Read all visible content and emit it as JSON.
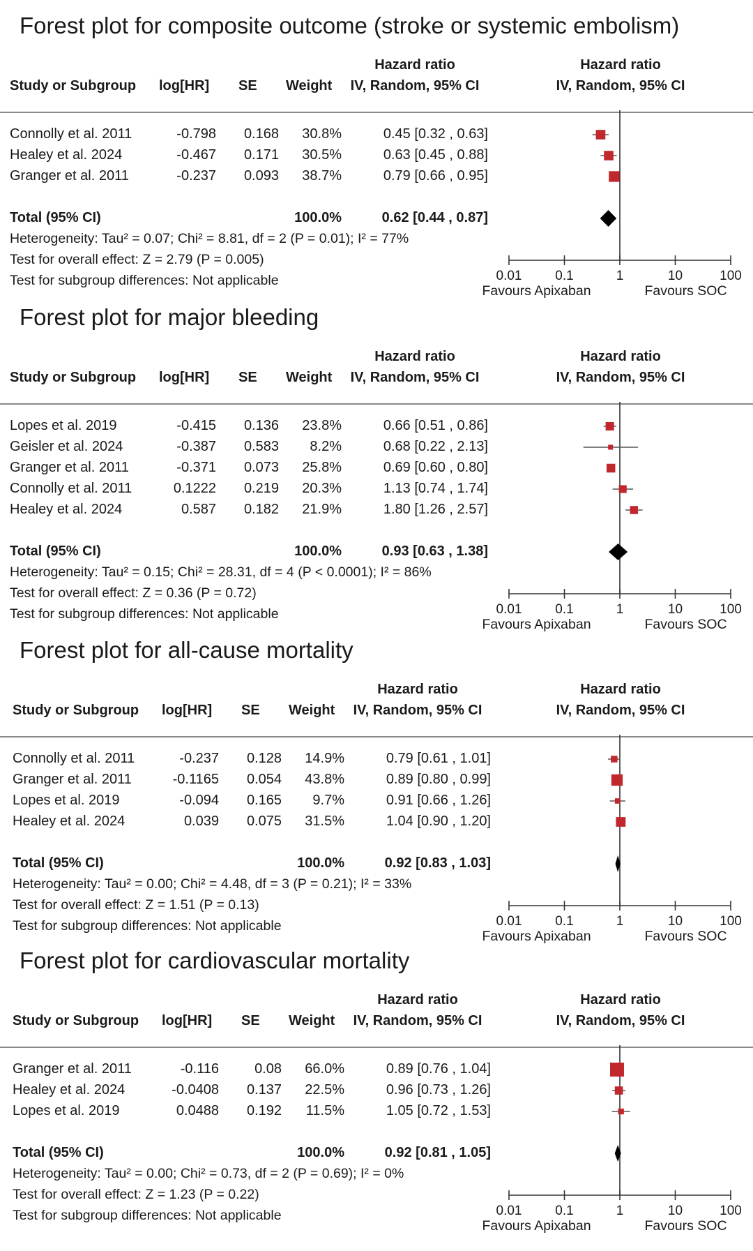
{
  "header": {
    "study": "Study or Subgroup",
    "loghr": "log[HR]",
    "se": "SE",
    "weight": "Weight",
    "hr_top": "Hazard ratio",
    "hr_bottom": "IV, Random, 95% CI",
    "plot_top": "Hazard ratio",
    "plot_bottom": "IV, Random, 95% CI"
  },
  "axis": {
    "ticks": [
      "0.01",
      "0.1",
      "1",
      "10",
      "100"
    ],
    "tick_values": [
      0.01,
      0.1,
      1,
      10,
      100
    ],
    "favours_left": "Favours Apixaban",
    "favours_right": "Favours SOC",
    "scale": "log"
  },
  "colors": {
    "marker": "#c0282d",
    "line": "#555555",
    "diamond": "#000000"
  },
  "chart_data": [
    {
      "type": "forest",
      "title": "Forest plot for composite outcome (stroke or systemic embolism)",
      "studies": [
        {
          "name": "Connolly et al. 2011",
          "loghr": "-0.798",
          "se": "0.168",
          "weight": "30.8%",
          "ci_text": "0.45 [0.32 , 0.63]",
          "hr": 0.45,
          "lo": 0.32,
          "hi": 0.63,
          "w": 30.8
        },
        {
          "name": "Healey et al. 2024",
          "loghr": "-0.467",
          "se": "0.171",
          "weight": "30.5%",
          "ci_text": "0.63 [0.45 , 0.88]",
          "hr": 0.63,
          "lo": 0.45,
          "hi": 0.88,
          "w": 30.5
        },
        {
          "name": "Granger et al. 2011",
          "loghr": "-0.237",
          "se": "0.093",
          "weight": "38.7%",
          "ci_text": "0.79 [0.66 , 0.95]",
          "hr": 0.79,
          "lo": 0.66,
          "hi": 0.95,
          "w": 38.7
        }
      ],
      "total": {
        "label": "Total (95% CI)",
        "weight": "100.0%",
        "ci_text": "0.62 [0.44 , 0.87]",
        "hr": 0.62,
        "lo": 0.44,
        "hi": 0.87
      },
      "heterogeneity": "Heterogeneity: Tau² = 0.07; Chi² = 8.81, df = 2 (P = 0.01); I² = 77%",
      "overall": "Test for overall effect: Z = 2.79 (P = 0.005)",
      "subgroup": "Test for subgroup differences: Not applicable"
    },
    {
      "type": "forest",
      "title": "Forest plot for major bleeding",
      "studies": [
        {
          "name": "Lopes et al. 2019",
          "loghr": "-0.415",
          "se": "0.136",
          "weight": "23.8%",
          "ci_text": "0.66 [0.51 , 0.86]",
          "hr": 0.66,
          "lo": 0.51,
          "hi": 0.86,
          "w": 23.8
        },
        {
          "name": "Geisler et al. 2024",
          "loghr": "-0.387",
          "se": "0.583",
          "weight": "8.2%",
          "ci_text": "0.68 [0.22 , 2.13]",
          "hr": 0.68,
          "lo": 0.22,
          "hi": 2.13,
          "w": 8.2
        },
        {
          "name": "Granger et al. 2011",
          "loghr": "-0.371",
          "se": "0.073",
          "weight": "25.8%",
          "ci_text": "0.69 [0.60 , 0.80]",
          "hr": 0.69,
          "lo": 0.6,
          "hi": 0.8,
          "w": 25.8
        },
        {
          "name": "Connolly et al. 2011",
          "loghr": "0.1222",
          "se": "0.219",
          "weight": "20.3%",
          "ci_text": "1.13 [0.74 , 1.74]",
          "hr": 1.13,
          "lo": 0.74,
          "hi": 1.74,
          "w": 20.3
        },
        {
          "name": "Healey et al. 2024",
          "loghr": "0.587",
          "se": "0.182",
          "weight": "21.9%",
          "ci_text": "1.80 [1.26 , 2.57]",
          "hr": 1.8,
          "lo": 1.26,
          "hi": 2.57,
          "w": 21.9
        }
      ],
      "total": {
        "label": "Total (95% CI)",
        "weight": "100.0%",
        "ci_text": "0.93 [0.63 , 1.38]",
        "hr": 0.93,
        "lo": 0.63,
        "hi": 1.38
      },
      "heterogeneity": "Heterogeneity: Tau² = 0.15; Chi² = 28.31, df = 4 (P < 0.0001); I² = 86%",
      "overall": "Test for overall effect: Z = 0.36 (P = 0.72)",
      "subgroup": "Test for subgroup differences: Not applicable"
    },
    {
      "type": "forest",
      "title": "Forest plot for all-cause mortality",
      "studies": [
        {
          "name": "Connolly et al. 2011",
          "loghr": "-0.237",
          "se": "0.128",
          "weight": "14.9%",
          "ci_text": "0.79 [0.61 , 1.01]",
          "hr": 0.79,
          "lo": 0.61,
          "hi": 1.01,
          "w": 14.9
        },
        {
          "name": "Granger et al. 2011",
          "loghr": "-0.1165",
          "se": "0.054",
          "weight": "43.8%",
          "ci_text": "0.89 [0.80 , 0.99]",
          "hr": 0.89,
          "lo": 0.8,
          "hi": 0.99,
          "w": 43.8
        },
        {
          "name": "Lopes et al. 2019",
          "loghr": "-0.094",
          "se": "0.165",
          "weight": "9.7%",
          "ci_text": "0.91 [0.66 , 1.26]",
          "hr": 0.91,
          "lo": 0.66,
          "hi": 1.26,
          "w": 9.7
        },
        {
          "name": "Healey et al. 2024",
          "loghr": "0.039",
          "se": "0.075",
          "weight": "31.5%",
          "ci_text": "1.04 [0.90 , 1.20]",
          "hr": 1.04,
          "lo": 0.9,
          "hi": 1.2,
          "w": 31.5
        }
      ],
      "total": {
        "label": "Total (95% CI)",
        "weight": "100.0%",
        "ci_text": "0.92 [0.83 , 1.03]",
        "hr": 0.92,
        "lo": 0.83,
        "hi": 1.03
      },
      "heterogeneity": "Heterogeneity: Tau² = 0.00; Chi² = 4.48, df = 3 (P = 0.21); I² = 33%",
      "overall": "Test for overall effect: Z = 1.51 (P = 0.13)",
      "subgroup": "Test for subgroup differences: Not applicable"
    },
    {
      "type": "forest",
      "title": "Forest plot for cardiovascular mortality",
      "studies": [
        {
          "name": "Granger et al. 2011",
          "loghr": "-0.116",
          "se": "0.08",
          "weight": "66.0%",
          "ci_text": "0.89 [0.76 , 1.04]",
          "hr": 0.89,
          "lo": 0.76,
          "hi": 1.04,
          "w": 66.0
        },
        {
          "name": "Healey et al. 2024",
          "loghr": "-0.0408",
          "se": "0.137",
          "weight": "22.5%",
          "ci_text": "0.96 [0.73 , 1.26]",
          "hr": 0.96,
          "lo": 0.73,
          "hi": 1.26,
          "w": 22.5
        },
        {
          "name": "Lopes et al. 2019",
          "loghr": "0.0488",
          "se": "0.192",
          "weight": "11.5%",
          "ci_text": "1.05 [0.72 , 1.53]",
          "hr": 1.05,
          "lo": 0.72,
          "hi": 1.53,
          "w": 11.5
        }
      ],
      "total": {
        "label": "Total (95% CI)",
        "weight": "100.0%",
        "ci_text": "0.92 [0.81 , 1.05]",
        "hr": 0.92,
        "lo": 0.81,
        "hi": 1.05
      },
      "heterogeneity": "Heterogeneity: Tau² = 0.00; Chi² = 0.73, df = 2 (P = 0.69); I² = 0%",
      "overall": "Test for overall effect: Z = 1.23 (P = 0.22)",
      "subgroup": "Test for subgroup differences: Not applicable"
    }
  ]
}
